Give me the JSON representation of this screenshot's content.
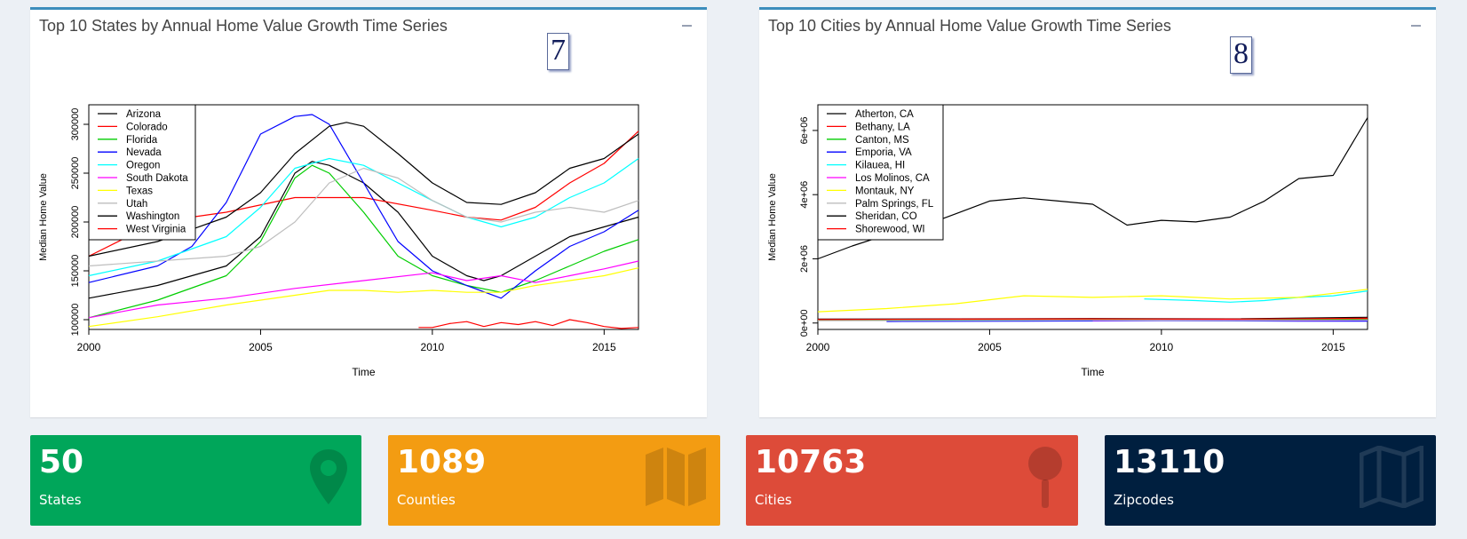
{
  "left_panel": {
    "title": "Top 10 States by Annual Home Value Growth Time Series",
    "badge": "7"
  },
  "right_panel": {
    "title": "Top 10 Cities by Annual Home Value Growth Time Series",
    "badge": "8"
  },
  "chart_data": [
    {
      "type": "line",
      "title": "",
      "xlabel": "Time",
      "ylabel": "Median Home Value",
      "xlim": [
        2000,
        2016
      ],
      "ylim": [
        90000,
        320000
      ],
      "xticks": [
        2000,
        2005,
        2010,
        2015
      ],
      "yticks": [
        100000,
        150000,
        200000,
        250000,
        300000
      ],
      "legend": "top-left",
      "series": [
        {
          "name": "Arizona",
          "color": "#000000",
          "x": [
            2000,
            2002,
            2004,
            2005,
            2006,
            2006.5,
            2007,
            2008,
            2009,
            2010,
            2011,
            2011.5,
            2012,
            2013,
            2014,
            2015,
            2016
          ],
          "y": [
            122000,
            135000,
            155000,
            185000,
            250000,
            262000,
            258000,
            240000,
            210000,
            165000,
            145000,
            140000,
            145000,
            165000,
            185000,
            195000,
            205000
          ]
        },
        {
          "name": "Colorado",
          "color": "#ff0000",
          "x": [
            2000,
            2002,
            2004,
            2006,
            2008,
            2010,
            2011,
            2012,
            2013,
            2014,
            2015,
            2016
          ],
          "y": [
            165000,
            200000,
            210000,
            225000,
            225000,
            212000,
            205000,
            202000,
            215000,
            240000,
            260000,
            293000
          ]
        },
        {
          "name": "Florida",
          "color": "#00cd00",
          "x": [
            2000,
            2002,
            2004,
            2005,
            2006,
            2006.5,
            2007,
            2008,
            2009,
            2010,
            2011,
            2012,
            2013,
            2014,
            2015,
            2016
          ],
          "y": [
            102000,
            120000,
            145000,
            180000,
            245000,
            258000,
            250000,
            210000,
            165000,
            145000,
            135000,
            128000,
            140000,
            155000,
            170000,
            182000
          ]
        },
        {
          "name": "Nevada",
          "color": "#0000ff",
          "x": [
            2000,
            2002,
            2003,
            2004,
            2005,
            2006,
            2006.5,
            2007,
            2008,
            2009,
            2010,
            2011,
            2012,
            2013,
            2014,
            2015,
            2016
          ],
          "y": [
            138000,
            155000,
            175000,
            220000,
            290000,
            308000,
            310000,
            300000,
            240000,
            180000,
            150000,
            135000,
            122000,
            150000,
            175000,
            190000,
            212000
          ]
        },
        {
          "name": "Oregon",
          "color": "#00ffff",
          "x": [
            2000,
            2002,
            2004,
            2005,
            2006,
            2007,
            2008,
            2009,
            2010,
            2011,
            2012,
            2013,
            2014,
            2015,
            2016
          ],
          "y": [
            145000,
            160000,
            185000,
            215000,
            255000,
            265000,
            258000,
            240000,
            222000,
            205000,
            195000,
            205000,
            225000,
            240000,
            265000
          ]
        },
        {
          "name": "South Dakota",
          "color": "#ff00ff",
          "x": [
            2000,
            2002,
            2004,
            2006,
            2008,
            2010,
            2011,
            2012,
            2013,
            2014,
            2015,
            2016
          ],
          "y": [
            102000,
            115000,
            122000,
            132000,
            140000,
            148000,
            140000,
            145000,
            138000,
            145000,
            152000,
            160000
          ]
        },
        {
          "name": "Texas",
          "color": "#ffff00",
          "x": [
            2000,
            2002,
            2004,
            2006,
            2007,
            2008,
            2009,
            2010,
            2011,
            2012,
            2013,
            2014,
            2015,
            2016
          ],
          "y": [
            93000,
            103000,
            115000,
            125000,
            130000,
            130000,
            128000,
            130000,
            128000,
            128000,
            135000,
            140000,
            145000,
            153000
          ]
        },
        {
          "name": "Utah",
          "color": "#bebebe",
          "x": [
            2000,
            2002,
            2004,
            2005,
            2006,
            2007,
            2008,
            2009,
            2010,
            2011,
            2012,
            2013,
            2014,
            2015,
            2016
          ],
          "y": [
            155000,
            160000,
            165000,
            175000,
            200000,
            240000,
            255000,
            245000,
            222000,
            205000,
            200000,
            210000,
            215000,
            210000,
            222000
          ]
        },
        {
          "name": "Washington",
          "color": "#000000",
          "x": [
            2000,
            2002,
            2004,
            2005,
            2006,
            2007,
            2007.5,
            2008,
            2009,
            2010,
            2011,
            2012,
            2013,
            2014,
            2015,
            2016
          ],
          "y": [
            165000,
            180000,
            205000,
            230000,
            270000,
            298000,
            302000,
            298000,
            270000,
            240000,
            220000,
            218000,
            230000,
            255000,
            265000,
            290000
          ]
        },
        {
          "name": "West Virginia",
          "color": "#ff0000",
          "x": [
            2009.6,
            2010,
            2010.5,
            2011,
            2011.5,
            2012,
            2012.5,
            2013,
            2013.5,
            2014,
            2014.5,
            2015,
            2015.5,
            2016
          ],
          "y": [
            92000,
            92000,
            96000,
            98000,
            93000,
            97000,
            95000,
            98000,
            94000,
            100000,
            97000,
            93000,
            91000,
            92000
          ]
        }
      ]
    },
    {
      "type": "line",
      "title": "",
      "xlabel": "Time",
      "ylabel": "Median Home Value",
      "xlim": [
        2000,
        2016
      ],
      "ylim": [
        -200000,
        6800000
      ],
      "xticks": [
        2000,
        2005,
        2010,
        2015
      ],
      "yticks": [
        0,
        2000000,
        4000000,
        6000000
      ],
      "ytick_labels": [
        "0e+00",
        "2e+06",
        "4e+06",
        "6e+06"
      ],
      "legend": "top-left",
      "series": [
        {
          "name": "Atherton, CA",
          "color": "#000000",
          "x": [
            2000,
            2001,
            2002,
            2003,
            2004,
            2005,
            2006,
            2007,
            2008,
            2009,
            2010,
            2011,
            2012,
            2013,
            2014,
            2015,
            2016
          ],
          "y": [
            2000000,
            2400000,
            2750000,
            3000000,
            3400000,
            3800000,
            3900000,
            3800000,
            3700000,
            3050000,
            3200000,
            3150000,
            3300000,
            3800000,
            4500000,
            4600000,
            6400000
          ]
        },
        {
          "name": "Bethany, LA",
          "color": "#ff0000",
          "x": [
            2000,
            2004,
            2008,
            2012,
            2016
          ],
          "y": [
            100000,
            100000,
            110000,
            110000,
            120000
          ]
        },
        {
          "name": "Canton, MS",
          "color": "#00cd00",
          "x": [
            2000,
            2004,
            2008,
            2012,
            2016
          ],
          "y": [
            80000,
            90000,
            100000,
            100000,
            110000
          ]
        },
        {
          "name": "Emporia, VA",
          "color": "#0000ff",
          "x": [
            2002,
            2006,
            2010,
            2014,
            2016
          ],
          "y": [
            50000,
            60000,
            70000,
            60000,
            60000
          ]
        },
        {
          "name": "Kilauea, HI",
          "color": "#00ffff",
          "x": [
            2009.5,
            2011,
            2012,
            2013,
            2014,
            2015,
            2016
          ],
          "y": [
            750000,
            700000,
            650000,
            700000,
            800000,
            850000,
            1000000
          ]
        },
        {
          "name": "Los Molinos, CA",
          "color": "#ff00ff",
          "x": [
            2008,
            2010,
            2012,
            2014,
            2016
          ],
          "y": [
            80000,
            90000,
            90000,
            80000,
            90000
          ]
        },
        {
          "name": "Montauk, NY",
          "color": "#ffff00",
          "x": [
            2000,
            2002,
            2004,
            2006,
            2008,
            2010,
            2012,
            2014,
            2016
          ],
          "y": [
            350000,
            450000,
            600000,
            850000,
            800000,
            850000,
            750000,
            800000,
            1050000
          ]
        },
        {
          "name": "Palm Springs, FL",
          "color": "#bebebe",
          "x": [
            2000,
            2004,
            2008,
            2012,
            2016
          ],
          "y": [
            70000,
            80000,
            90000,
            80000,
            90000
          ]
        },
        {
          "name": "Sheridan, CO",
          "color": "#000000",
          "x": [
            2000,
            2004,
            2008,
            2012,
            2016
          ],
          "y": [
            120000,
            130000,
            140000,
            130000,
            180000
          ]
        },
        {
          "name": "Shorewood, WI",
          "color": "#ff0000",
          "x": [
            2000,
            2004,
            2008,
            2012,
            2016
          ],
          "y": [
            110000,
            120000,
            130000,
            120000,
            150000
          ]
        }
      ]
    }
  ],
  "value_boxes": [
    {
      "value": "50",
      "label": "States",
      "color": "#00a65a",
      "icon": "map-marker-icon"
    },
    {
      "value": "1089",
      "label": "Counties",
      "color": "#f39c12",
      "icon": "map-icon"
    },
    {
      "value": "10763",
      "label": "Cities",
      "color": "#dd4b39",
      "icon": "map-pin-icon"
    },
    {
      "value": "13110",
      "label": "Zipcodes",
      "color": "#001f3f",
      "icon": "map-outline-icon"
    }
  ]
}
